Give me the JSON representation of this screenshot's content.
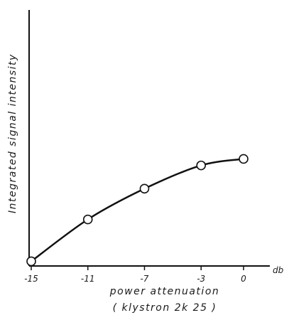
{
  "chart_data": {
    "type": "line",
    "title": "",
    "xlabel": "power attenuation",
    "xlabel_sub": "( klystron 2k 25 )",
    "xunit": "db",
    "ylabel": "Integrated signal intensity",
    "x": [
      -15,
      -11,
      -7,
      -3,
      0
    ],
    "y": [
      0.05,
      0.5,
      0.83,
      1.08,
      1.15
    ],
    "xticks": [
      -15,
      -11,
      -7,
      -3,
      0
    ],
    "xtick_labels": [
      "-15",
      "-11",
      "-7",
      "-3",
      "0"
    ],
    "xlim": [
      -15,
      0
    ],
    "ylim": [
      0,
      2.75
    ],
    "y_tick_labels_shown": false,
    "grid": false,
    "legend": false,
    "marker": "open-circle",
    "line_style": "smooth",
    "colors": {
      "line": "#111111",
      "marker_fill": "#ffffff"
    }
  }
}
